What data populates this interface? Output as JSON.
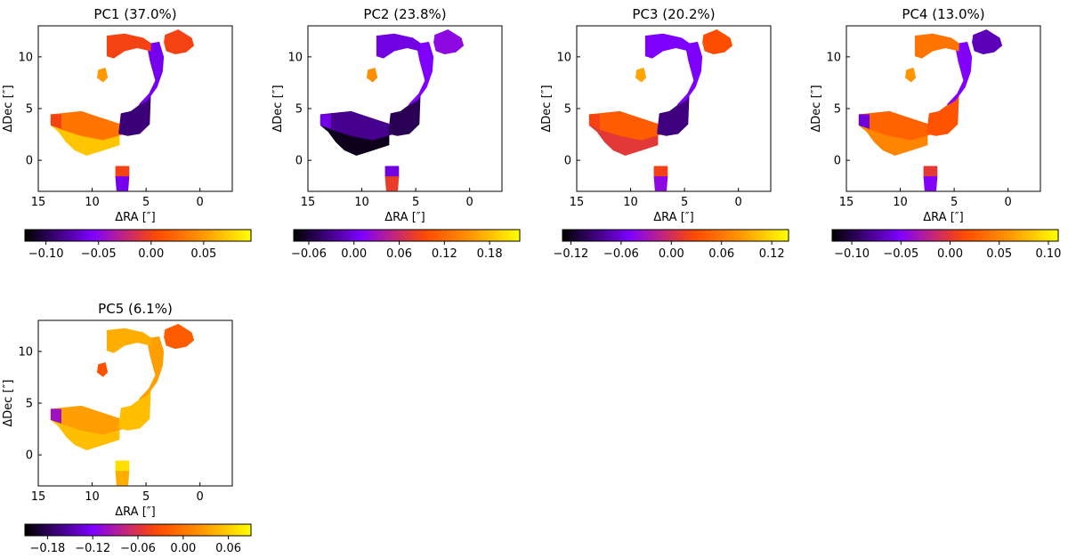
{
  "figure": {
    "colormap": "gnuplot",
    "colormap_stops": [
      "#000000",
      "#7f00ff",
      "#ff4800",
      "#ff9400",
      "#ffff00"
    ]
  },
  "chart_data": [
    {
      "type": "heatmap",
      "title": "PC1 (37.0%)",
      "xlabel": "ΔRA [″]",
      "ylabel": "ΔDec [″]",
      "xlim": [
        15,
        -3
      ],
      "ylim": [
        -3,
        13
      ],
      "xticks": [
        15,
        10,
        5,
        0
      ],
      "yticks": [
        0,
        5,
        10
      ],
      "colorbar": {
        "range": [
          -0.12,
          0.095
        ],
        "ticks": [
          -0.1,
          -0.05,
          0.0,
          0.05
        ],
        "tick_labels": [
          "−0.10",
          "−0.05",
          "0.00",
          "0.05"
        ]
      },
      "regions": {
        "arc_top": 0.0,
        "arc_side": -0.06,
        "arc_inner": -0.09,
        "tail_end": 0.0,
        "tail_mid": 0.03,
        "tail_bottom": 0.07,
        "blob_ne": 0.0,
        "blob_south_top": 0.0,
        "blob_south_bottom": -0.06,
        "knot": 0.05
      }
    },
    {
      "type": "heatmap",
      "title": "PC2 (23.8%)",
      "xlabel": "ΔRA [″]",
      "ylabel": "ΔDec [″]",
      "xlim": [
        15,
        -3
      ],
      "ylim": [
        -3,
        13
      ],
      "xticks": [
        15,
        10,
        5,
        0
      ],
      "yticks": [
        0,
        5,
        10
      ],
      "colorbar": {
        "range": [
          -0.08,
          0.22
        ],
        "ticks": [
          -0.06,
          0.0,
          0.06,
          0.12,
          0.18
        ],
        "tick_labels": [
          "−0.06",
          "0.00",
          "0.06",
          "0.12",
          "0.18"
        ]
      },
      "regions": {
        "arc_top": 0.0,
        "arc_side": 0.01,
        "arc_inner": -0.05,
        "tail_end": 0.0,
        "tail_mid": -0.03,
        "tail_bottom": -0.07,
        "blob_ne": 0.02,
        "blob_south_top": 0.0,
        "blob_south_bottom": 0.08,
        "knot": 0.15
      }
    },
    {
      "type": "heatmap",
      "title": "PC3 (20.2%)",
      "xlabel": "ΔRA [″]",
      "ylabel": "ΔDec [″]",
      "xlim": [
        15,
        -3
      ],
      "ylim": [
        -3,
        13
      ],
      "xticks": [
        15,
        10,
        5,
        0
      ],
      "yticks": [
        0,
        5,
        10
      ],
      "colorbar": {
        "range": [
          -0.13,
          0.14
        ],
        "ticks": [
          -0.12,
          -0.06,
          0.0,
          0.06,
          0.12
        ],
        "tick_labels": [
          "−0.12",
          "−0.06",
          "0.00",
          "0.06",
          "0.12"
        ]
      },
      "regions": {
        "arc_top": -0.05,
        "arc_side": -0.05,
        "arc_inner": -0.09,
        "tail_end": 0.02,
        "tail_mid": 0.04,
        "tail_bottom": 0.01,
        "blob_ne": 0.03,
        "blob_south_top": 0.02,
        "blob_south_bottom": -0.04,
        "knot": 0.09
      }
    },
    {
      "type": "heatmap",
      "title": "PC4 (13.0%)",
      "xlabel": "ΔRA [″]",
      "ylabel": "ΔDec [″]",
      "xlim": [
        15,
        -3
      ],
      "ylim": [
        -3,
        13
      ],
      "xticks": [
        15,
        10,
        5,
        0
      ],
      "yticks": [
        0,
        5,
        10
      ],
      "colorbar": {
        "range": [
          -0.12,
          0.11
        ],
        "ticks": [
          -0.1,
          -0.05,
          0.0,
          0.05,
          0.1
        ],
        "tick_labels": [
          "−0.10",
          "−0.05",
          "0.00",
          "0.05",
          "0.10"
        ]
      },
      "regions": {
        "arc_top": 0.04,
        "arc_side": -0.05,
        "arc_inner": 0.02,
        "tail_end": -0.06,
        "tail_mid": 0.03,
        "tail_bottom": 0.05,
        "blob_ne": -0.07,
        "blob_south_top": 0.0,
        "blob_south_bottom": -0.05,
        "knot": 0.06
      }
    },
    {
      "type": "heatmap",
      "title": "PC5 (6.1%)",
      "xlabel": "ΔRA [″]",
      "ylabel": "ΔDec [″]",
      "xlim": [
        15,
        -3
      ],
      "ylim": [
        -3,
        13
      ],
      "xticks": [
        15,
        10,
        5,
        0
      ],
      "yticks": [
        0,
        5,
        10
      ],
      "colorbar": {
        "range": [
          -0.21,
          0.09
        ],
        "ticks": [
          -0.18,
          -0.12,
          -0.06,
          0.0,
          0.06
        ],
        "tick_labels": [
          "−0.18",
          "−0.12",
          "−0.06",
          "0.00",
          "0.06"
        ]
      },
      "regions": {
        "arc_top": 0.04,
        "arc_side": 0.03,
        "arc_inner": 0.05,
        "tail_end": -0.1,
        "tail_mid": 0.03,
        "tail_bottom": 0.05,
        "blob_ne": -0.02,
        "blob_south_top": 0.07,
        "blob_south_bottom": 0.04,
        "knot": -0.03
      }
    }
  ]
}
